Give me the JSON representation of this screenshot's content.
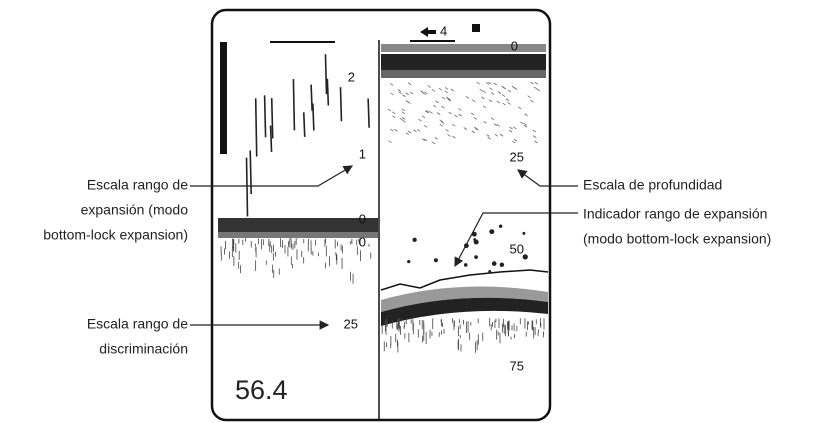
{
  "screen": {
    "shift_indicator": "4",
    "left_scale": [
      "2",
      "1",
      "0",
      "0"
    ],
    "discrimination_scale": "25",
    "right_scale": [
      "0",
      "25",
      "50",
      "75"
    ],
    "readout": "56.4"
  },
  "callouts": [
    {
      "lines": [
        "Escala rango de",
        "expansión (modo",
        "bottom-lock expansion)"
      ]
    },
    {
      "lines": [
        "Escala rango de",
        "discriminación"
      ]
    },
    {
      "lines": [
        "Escala de profundidad"
      ]
    },
    {
      "lines": [
        "Indicador rango de expansión",
        "(modo bottom-lock expansion)"
      ]
    }
  ]
}
